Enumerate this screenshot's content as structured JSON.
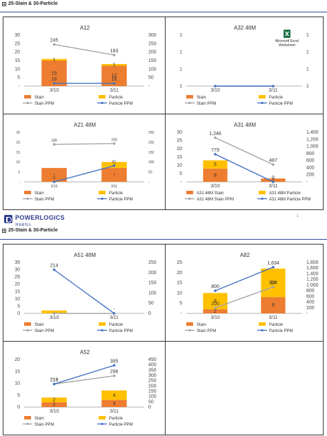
{
  "page": {
    "section_title_1": "25-Stain & 30-Particle",
    "section_title_2": "25-Stain & 30-Particle",
    "logo_name": "POWERLOGICS",
    "logo_sub": "파워로직스",
    "page_number": "1",
    "embedded_object_label": "Microsoft Excel Worksheet"
  },
  "colors": {
    "stain": "#ED7D31",
    "particle": "#FFC000",
    "stain_ppm": "#A5A5A5",
    "particle_ppm": "#4472C4",
    "rule": "#2b4c9a"
  },
  "chart_data": [
    {
      "id": "A12",
      "type": "bar",
      "title": "A12",
      "categories": [
        "3/10",
        "3/11"
      ],
      "series": [
        {
          "name": "Stain",
          "kind": "bar",
          "values": [
            15,
            12
          ]
        },
        {
          "name": "Particle",
          "kind": "bar",
          "values": [
            1,
            1
          ]
        },
        {
          "name": "Stain PPM",
          "kind": "line",
          "values": [
            245,
            183
          ],
          "labels": [
            "245",
            "183"
          ]
        },
        {
          "name": "Particle PPM",
          "kind": "line",
          "values": [
            16,
            16
          ],
          "labels": [
            "16",
            "16"
          ]
        }
      ],
      "ylim": [
        0,
        30
      ],
      "yticks": [
        "-",
        "5",
        "10",
        "15",
        "20",
        "25",
        "30"
      ],
      "y2lim": [
        0,
        300
      ],
      "y2ticks": [
        "-",
        "50",
        "100",
        "150",
        "200",
        "250",
        "300"
      ],
      "bar_labels": [
        [
          "15",
          "1"
        ],
        [
          "12",
          "1"
        ]
      ],
      "legend": "bottom"
    },
    {
      "id": "A32",
      "type": "line",
      "title": "A32 48M",
      "categories": [
        "3/10",
        "3/11"
      ],
      "series": [
        {
          "name": "Stain",
          "kind": "bar",
          "values": [
            0,
            0
          ]
        },
        {
          "name": "Particle",
          "kind": "bar",
          "values": [
            0,
            0
          ]
        },
        {
          "name": "Stain PPM",
          "kind": "line",
          "values": [
            0,
            0
          ],
          "labels": [
            "",
            ""
          ]
        },
        {
          "name": "Particle PPM",
          "kind": "line",
          "values": [
            0,
            0
          ],
          "labels": [
            "",
            ""
          ]
        }
      ],
      "ylim": [
        0,
        1
      ],
      "yticks": [
        "1",
        "1",
        "1",
        "1"
      ],
      "y2lim": [
        0,
        1
      ],
      "y2ticks": [
        "1",
        "1",
        "1",
        "1"
      ],
      "legend": "bottom"
    },
    {
      "id": "A21",
      "type": "bar",
      "title": "A21 48M",
      "categories": [
        "3/10",
        "3/11"
      ],
      "series": [
        {
          "name": "Stain",
          "kind": "bar",
          "values": [
            7,
            7
          ]
        },
        {
          "name": "Particle",
          "kind": "bar",
          "values": [
            0,
            3
          ]
        },
        {
          "name": "Stain PPM",
          "kind": "line",
          "values": [
            189,
            193
          ],
          "labels": [
            "189",
            "193"
          ]
        },
        {
          "name": "Particle PPM",
          "kind": "line",
          "values": [
            0,
            81
          ],
          "labels": [
            "0",
            "81"
          ]
        }
      ],
      "ylim": [
        0,
        25
      ],
      "yticks": [
        "-",
        "5",
        "10",
        "15",
        "20",
        "25"
      ],
      "y2lim": [
        0,
        250
      ],
      "y2ticks": [
        "-",
        "50",
        "100",
        "150",
        "200",
        "250"
      ],
      "bar_labels": [
        [
          "7",
          ""
        ],
        [
          "7",
          "3"
        ]
      ],
      "legend": "bottom"
    },
    {
      "id": "A31",
      "type": "bar",
      "title": "A31 48M",
      "categories": [
        "3/10",
        "3/11"
      ],
      "series": [
        {
          "name": "A31 48M Stain",
          "kind": "bar",
          "values": [
            8,
            2
          ]
        },
        {
          "name": "A31 48M Particle",
          "kind": "bar",
          "values": [
            5,
            0
          ]
        },
        {
          "name": "A31 48M Stain PPM",
          "kind": "line",
          "values": [
            1246,
            487
          ],
          "labels": [
            "1,246",
            "487"
          ]
        },
        {
          "name": "A31 48M Particle PPM",
          "kind": "line",
          "values": [
            779,
            0
          ],
          "labels": [
            "779",
            "0"
          ]
        }
      ],
      "ylim": [
        0,
        30
      ],
      "yticks": [
        "-",
        "5",
        "10",
        "15",
        "20",
        "25",
        "30"
      ],
      "y2lim": [
        0,
        1400
      ],
      "y2ticks": [
        "-",
        "200",
        "400",
        "600",
        "800",
        "1,000",
        "1,200",
        "1,400"
      ],
      "bar_labels": [
        [
          "8",
          "5"
        ],
        [
          "2",
          ""
        ]
      ],
      "legend": "bottom"
    },
    {
      "id": "A51",
      "type": "bar",
      "title": "A51 48M",
      "categories": [
        "3/10",
        "3/11"
      ],
      "series": [
        {
          "name": "Stain",
          "kind": "bar",
          "values": [
            0,
            0
          ]
        },
        {
          "name": "Particle",
          "kind": "bar",
          "values": [
            2,
            0
          ]
        },
        {
          "name": "Stain PPM",
          "kind": "line",
          "values": [
            0,
            0
          ],
          "labels": [
            "",
            ""
          ]
        },
        {
          "name": "Particle PPM",
          "kind": "line",
          "values": [
            214,
            0
          ],
          "labels": [
            "214",
            "-"
          ]
        }
      ],
      "ylim": [
        0,
        35
      ],
      "yticks": [
        "0",
        "5",
        "10",
        "15",
        "20",
        "25",
        "30",
        "35"
      ],
      "y2lim": [
        0,
        250
      ],
      "y2ticks": [
        "0",
        "50",
        "100",
        "150",
        "200",
        "250"
      ],
      "bar_labels": [
        [
          "",
          ""
        ],
        [
          "",
          ""
        ]
      ],
      "legend": "bottom"
    },
    {
      "id": "A82",
      "type": "bar",
      "title": "A82",
      "categories": [
        "3/10",
        "3/11"
      ],
      "series": [
        {
          "name": "Stain",
          "kind": "bar",
          "values": [
            2,
            8
          ]
        },
        {
          "name": "Particle",
          "kind": "bar",
          "values": [
            8,
            14
          ]
        },
        {
          "name": "Stain PPM",
          "kind": "line",
          "values": [
            200,
            934
          ],
          "labels": [
            "200",
            "934"
          ]
        },
        {
          "name": "Particle PPM",
          "kind": "line",
          "values": [
            800,
            1634
          ],
          "labels": [
            "800",
            "1,634"
          ]
        }
      ],
      "ylim": [
        0,
        25
      ],
      "yticks": [
        "-",
        "5",
        "10",
        "15",
        "20",
        "25"
      ],
      "y2lim": [
        0,
        1800
      ],
      "y2ticks": [
        "-",
        "200",
        "400",
        "600",
        "800",
        "1,000",
        "1,200",
        "1,400",
        "1,600",
        "1,800"
      ],
      "bar_labels": [
        [
          "2",
          "8"
        ],
        [
          "8",
          "14"
        ]
      ],
      "legend": "bottom"
    },
    {
      "id": "A52",
      "type": "bar",
      "title": "A52",
      "categories": [
        "3/10",
        "3/11"
      ],
      "series": [
        {
          "name": "Stain",
          "kind": "bar",
          "values": [
            2,
            3
          ]
        },
        {
          "name": "Particle",
          "kind": "bar",
          "values": [
            2,
            4
          ]
        },
        {
          "name": "Stain PPM",
          "kind": "line",
          "values": [
            218,
            296
          ],
          "labels": [
            "218",
            "296"
          ]
        },
        {
          "name": "Particle PPM",
          "kind": "line",
          "values": [
            218,
            395
          ],
          "labels": [
            "218",
            "395"
          ]
        }
      ],
      "ylim": [
        0,
        20
      ],
      "yticks": [
        "0",
        "5",
        "10",
        "15",
        "20"
      ],
      "y2lim": [
        0,
        450
      ],
      "y2ticks": [
        "0",
        "50",
        "100",
        "150",
        "200",
        "250",
        "300",
        "350",
        "400",
        "450"
      ],
      "bar_labels": [
        [
          "2",
          "2"
        ],
        [
          "3",
          "4"
        ]
      ],
      "legend": "bottom"
    }
  ]
}
